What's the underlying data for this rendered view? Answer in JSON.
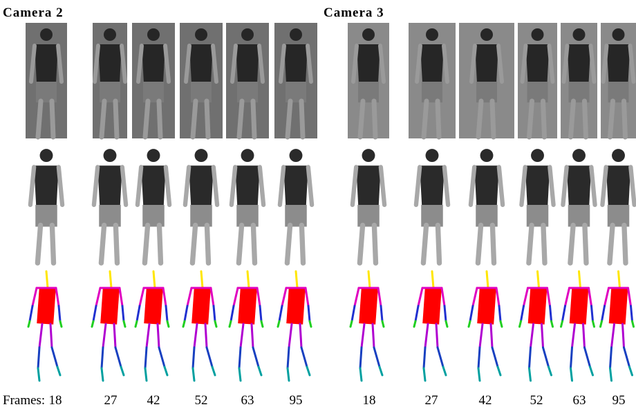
{
  "panels": [
    {
      "title": "Camera 2",
      "frames": [
        18,
        27,
        42,
        52,
        63,
        95
      ]
    },
    {
      "title": "Camera 3",
      "frames": [
        18,
        27,
        42,
        52,
        63,
        95
      ]
    }
  ],
  "frames_label": "Frames:"
}
